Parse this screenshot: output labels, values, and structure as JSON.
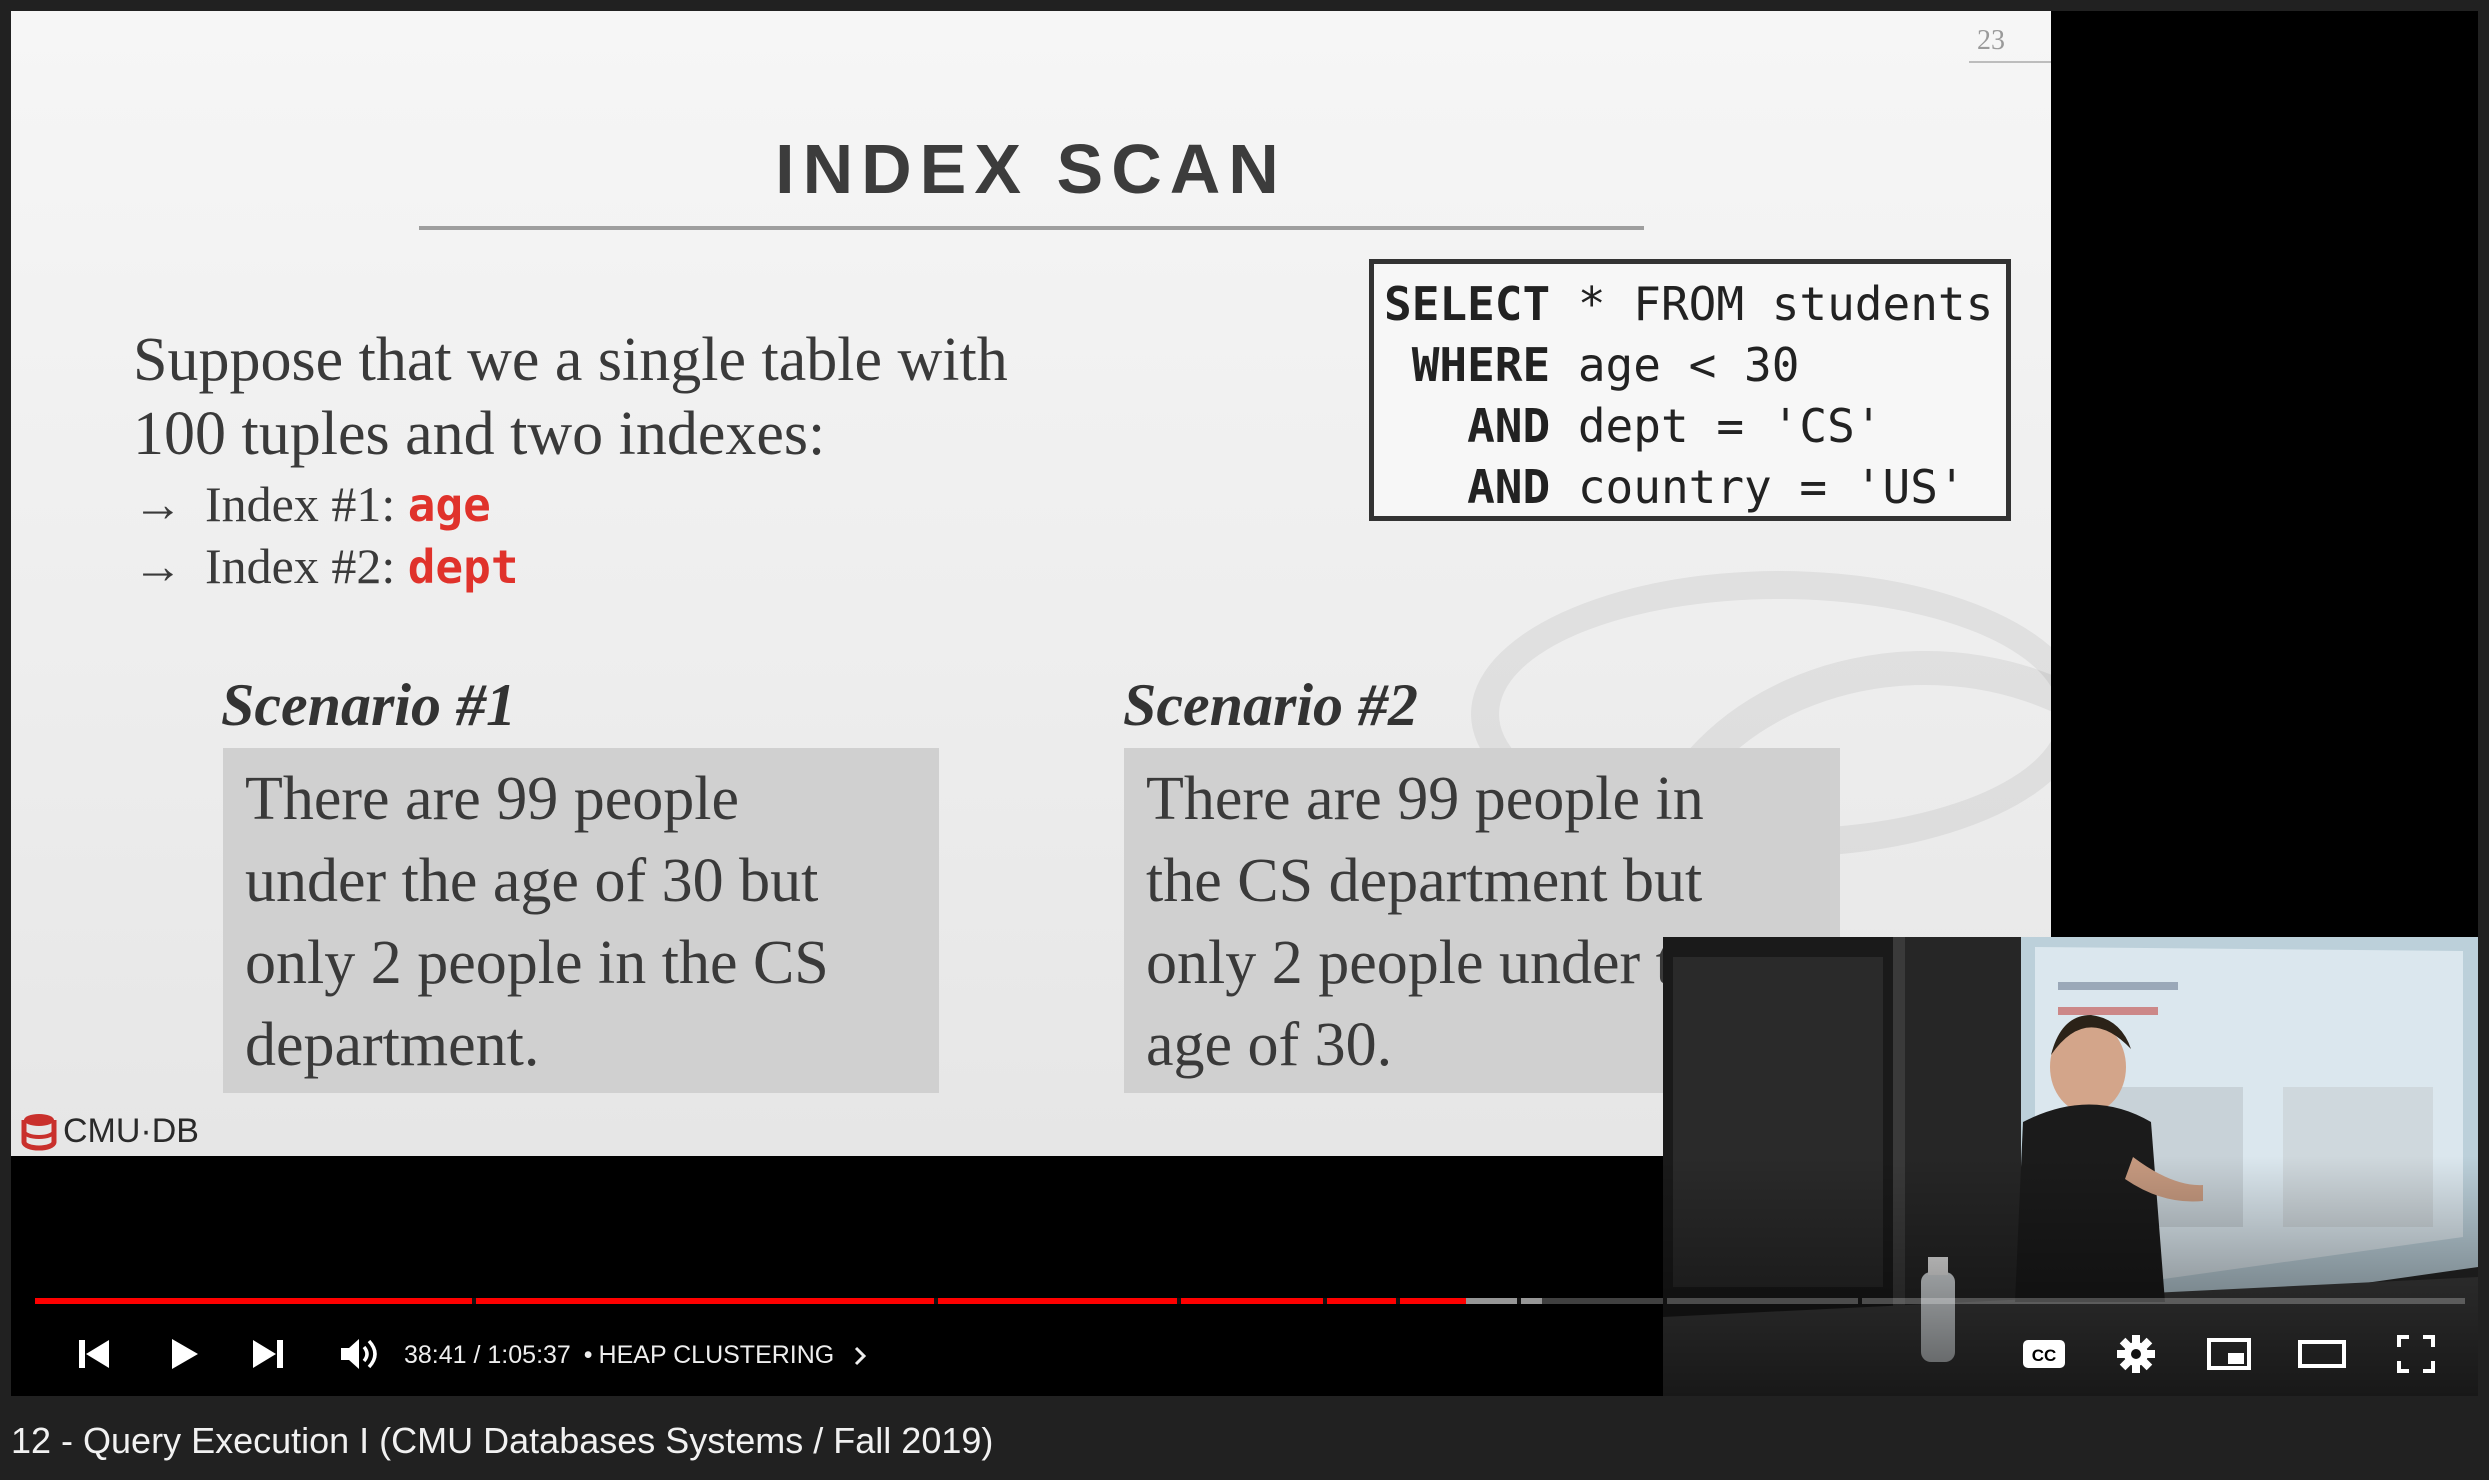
{
  "slide": {
    "number": "23",
    "title": "INDEX SCAN",
    "intro_line1": "Suppose that we a single table with",
    "intro_line2": "100 tuples and two indexes:",
    "index1_prefix": "Index #1: ",
    "index1_value": "age",
    "index2_prefix": "Index #2: ",
    "index2_value": "dept",
    "arrow": "→",
    "sql": {
      "line1_kw": "SELECT",
      "line1_rest": " * FROM students",
      "line2_kw": " WHERE",
      "line2_rest": " age < 30",
      "line3_kw": "   AND",
      "line3_rest": " dept = 'CS'",
      "line4_kw": "   AND",
      "line4_rest": " country = 'US'"
    },
    "scenario1": {
      "label": "Scenario #1",
      "lines": [
        "There are 99 people",
        "under the age of 30 but",
        "only 2 people in the CS",
        "department."
      ]
    },
    "scenario2": {
      "label": "Scenario #2",
      "lines": [
        "There are 99 people in",
        "the CS department but",
        "only 2 people under the",
        "age of 30."
      ]
    },
    "logo_text": "CMU·DB"
  },
  "player": {
    "time_current": "38:41",
    "time_total": "1:05:37",
    "time_separator": " / ",
    "chapter_bullet": "•",
    "chapter": "HEAP CLUSTERING",
    "progress_played": 0.589,
    "progress_buffered": 0.62,
    "accent_color": "#ff0000"
  },
  "video_title": "12 - Query Execution I (CMU Databases Systems / Fall 2019)"
}
